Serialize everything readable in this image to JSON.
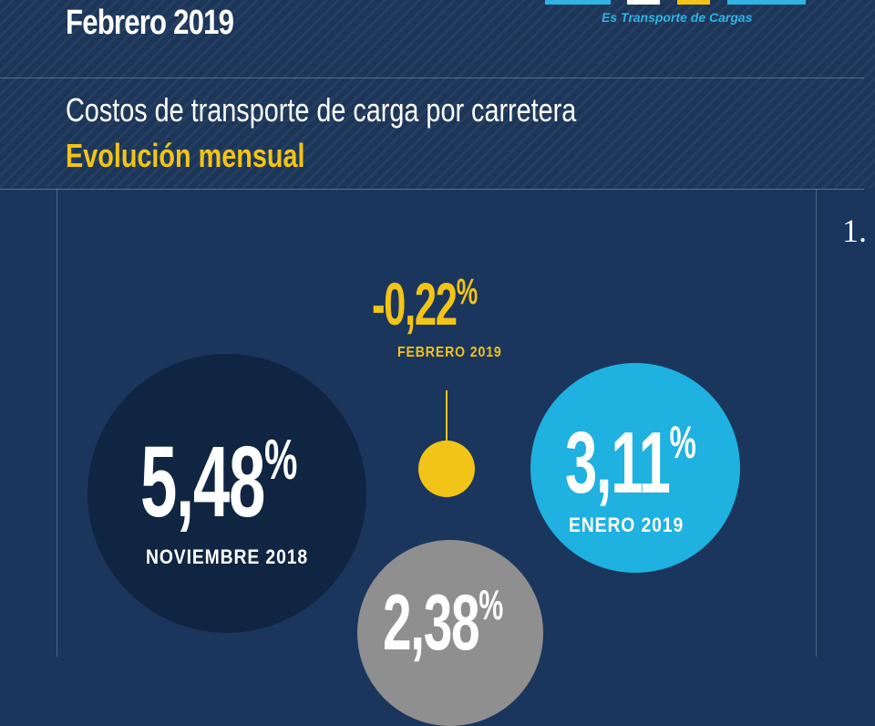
{
  "header": {
    "period": "Febrero 2019",
    "logo_tagline": "Es Transporte de Cargas",
    "title": "Costos de transporte de carga por carretera",
    "subtitle": "Evolución mensual"
  },
  "colors": {
    "background": "#1b365d",
    "accent_yellow": "#f2c418",
    "accent_blue": "#1fb1e0",
    "dark_navy": "#0f2542",
    "gray": "#8f8f8f"
  },
  "indicators": [
    {
      "id": "feb-2019",
      "value": "-0,22",
      "unit": "%",
      "label": "FEBRERO 2019"
    },
    {
      "id": "nov-2018",
      "value": "5,48",
      "unit": "%",
      "label": "NOVIEMBRE 2018"
    },
    {
      "id": "ene-2019",
      "value": "3,11",
      "unit": "%",
      "label": "ENERO 2019"
    },
    {
      "id": "dic-2018",
      "value": "2,38",
      "unit": "%"
    }
  ],
  "next_panel_number": "1."
}
